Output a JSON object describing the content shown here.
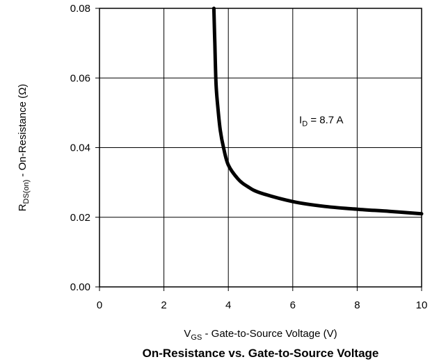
{
  "chart_data": {
    "type": "line",
    "title": "On-Resistance vs. Gate-to-Source Voltage",
    "xlabel": {
      "main": "V",
      "sub": "GS",
      "rest": " - Gate-to-Source Voltage (V)"
    },
    "ylabel": {
      "main": "R",
      "sub": "DS(on)",
      "rest": " - On-Resistance (Ω)"
    },
    "xlim": [
      0,
      10
    ],
    "ylim": [
      0,
      0.08
    ],
    "xticks": [
      "0",
      "2",
      "4",
      "6",
      "8",
      "10"
    ],
    "yticks": [
      "0.00",
      "0.02",
      "0.04",
      "0.06",
      "0.08"
    ],
    "grid": true,
    "annotation": {
      "main": "I",
      "sub": "D",
      "rest": " = 8.7 A",
      "x": 6.2,
      "y": 0.047
    },
    "series": [
      {
        "x": [
          3.55,
          3.58,
          3.62,
          3.68,
          3.75,
          3.85,
          4.0,
          4.3,
          4.6,
          5.0,
          6.0,
          7.0,
          8.0,
          9.0,
          10.0
        ],
        "y": [
          0.08,
          0.07,
          0.058,
          0.051,
          0.045,
          0.04,
          0.035,
          0.031,
          0.0288,
          0.027,
          0.0245,
          0.0231,
          0.0223,
          0.0217,
          0.021
        ]
      }
    ]
  }
}
